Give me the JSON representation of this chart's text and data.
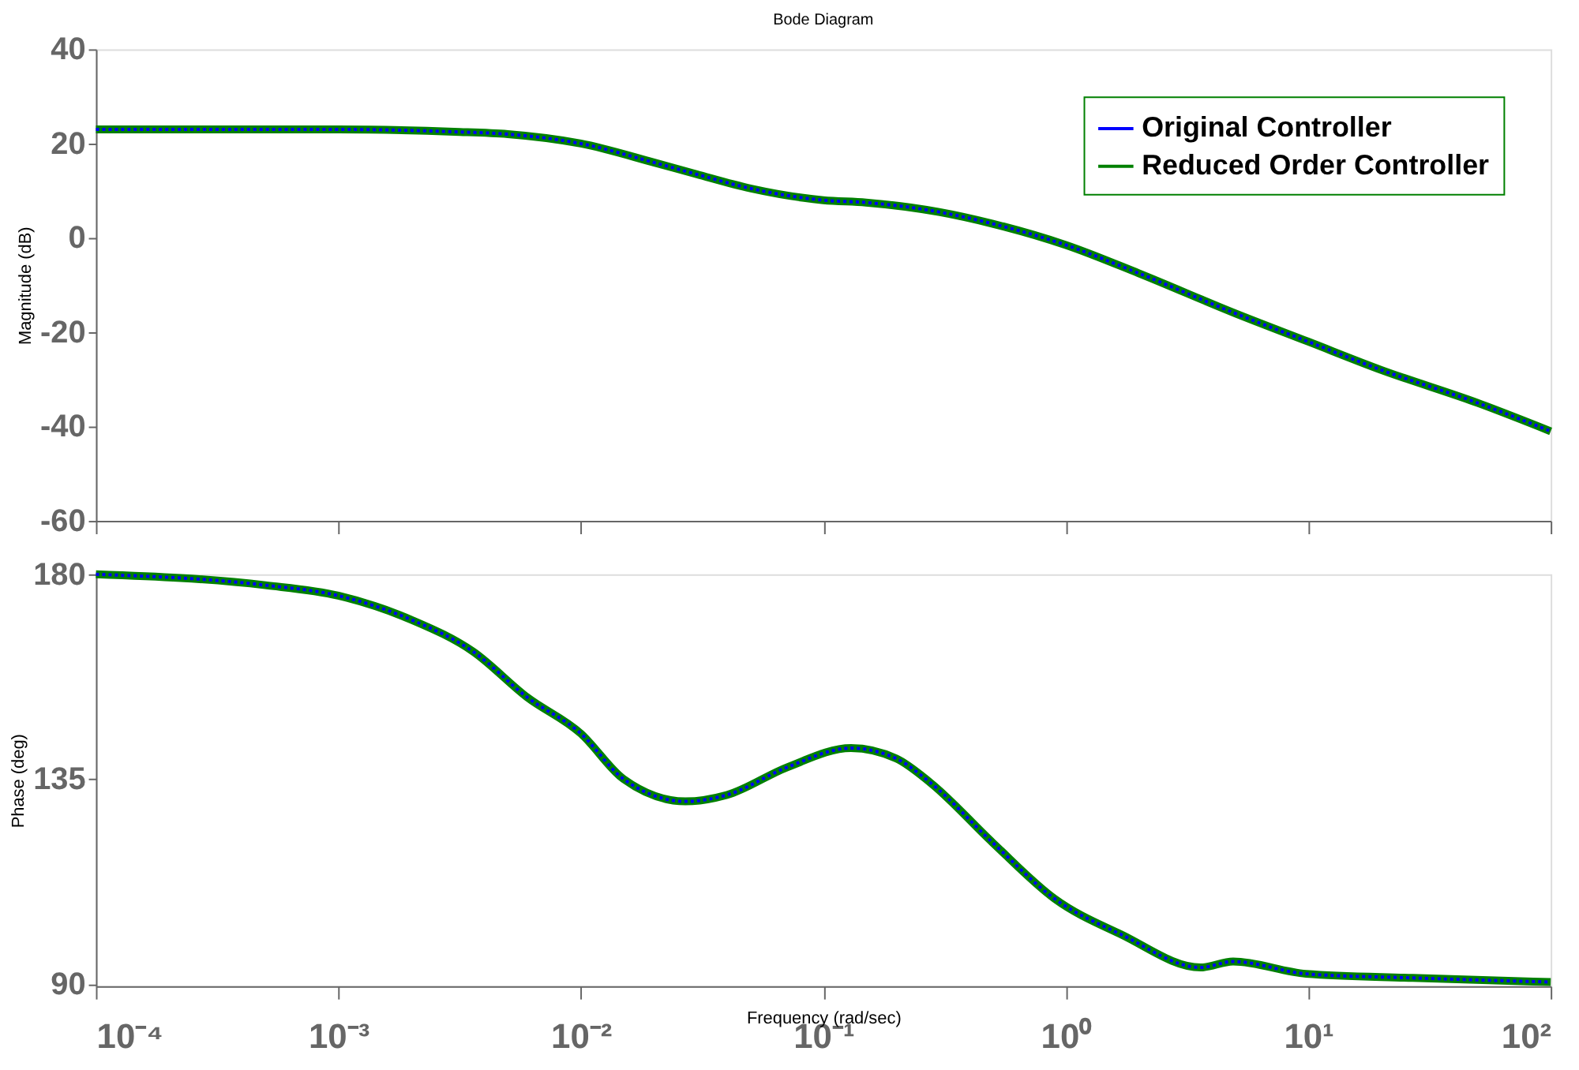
{
  "chart_data": [
    {
      "type": "line",
      "title": "Bode Diagram",
      "ylabel": "Magnitude (dB)",
      "log": "x",
      "legend": "top right",
      "tick_labels": "y",
      "x": [
        0.0001,
        0.001,
        0.003,
        0.005,
        0.01,
        0.02,
        0.03,
        0.05,
        0.1,
        0.15,
        0.3,
        0.5,
        1,
        2,
        5,
        10,
        20,
        50,
        100
      ],
      "xlim": [
        0.0001,
        100
      ],
      "xticks": [
        {
          "value": 0.0001,
          "label": null
        },
        {
          "value": 0.001,
          "label": null
        },
        {
          "value": 0.01,
          "label": null
        },
        {
          "value": 0.1,
          "label": null
        },
        {
          "value": 1,
          "label": null
        },
        {
          "value": 10,
          "label": null
        },
        {
          "value": 100,
          "label": null
        }
      ],
      "ylim": [
        -60,
        40
      ],
      "yticks": [
        -60,
        -40,
        -20,
        0,
        20,
        40
      ],
      "series": [
        {
          "name": "Original Controller",
          "color": "#0000ff",
          "line_style": "dotted",
          "values": [
            23,
            23,
            22.5,
            22,
            20,
            16,
            13.5,
            10.5,
            8,
            7.5,
            5.5,
            3,
            -1.5,
            -7.5,
            -16,
            -22,
            -28,
            -35,
            -41
          ]
        },
        {
          "name": "Reduced Order Controller",
          "color": "#008000",
          "line_style": "solid",
          "values": [
            23,
            23,
            22.5,
            22,
            20,
            16,
            13.5,
            10.5,
            8,
            7.5,
            5.5,
            3,
            -1.5,
            -7.5,
            -16,
            -22,
            -28,
            -35,
            -41
          ]
        }
      ]
    },
    {
      "type": "line",
      "ylabel": "Phase (deg)",
      "xlabel": "Frequency  (rad/sec)",
      "log": "x",
      "x": [
        0.0001,
        0.0005,
        0.001,
        0.002,
        0.0036,
        0.006,
        0.01,
        0.015,
        0.027,
        0.04,
        0.071,
        0.13,
        0.2,
        0.275,
        0.5,
        0.9,
        1.7,
        3.6,
        4.9,
        9.8,
        27,
        100
      ],
      "xlim": [
        0.0001,
        100
      ],
      "xticks": [
        {
          "value": 0.0001,
          "label": "10⁻⁴"
        },
        {
          "value": 0.001,
          "label": "10⁻³"
        },
        {
          "value": 0.01,
          "label": "10⁻²"
        },
        {
          "value": 0.1,
          "label": "10⁻¹"
        },
        {
          "value": 1,
          "label": "10⁰"
        },
        {
          "value": 10,
          "label": "10¹"
        },
        {
          "value": 100,
          "label": "10²"
        }
      ],
      "ylim": [
        89.5,
        180
      ],
      "yticks": [
        90,
        135,
        180
      ],
      "series": [
        {
          "color": "#0000ff",
          "line_style": "dotted",
          "values": [
            180,
            177.6,
            175.3,
            170,
            163,
            153,
            145,
            135,
            130.1,
            131.5,
            137.6,
            141.8,
            139.5,
            134.3,
            121,
            108.7,
            100.8,
            93.6,
            94.9,
            92.2,
            91.3,
            90.4
          ]
        },
        {
          "color": "#008000",
          "line_style": "solid",
          "values": [
            180,
            177.6,
            175.3,
            170,
            163,
            153,
            145,
            135,
            130.1,
            131.5,
            137.6,
            141.8,
            139.5,
            134.3,
            121,
            108.7,
            100.8,
            93.6,
            94.9,
            92.2,
            91.3,
            90.4
          ]
        }
      ]
    }
  ]
}
